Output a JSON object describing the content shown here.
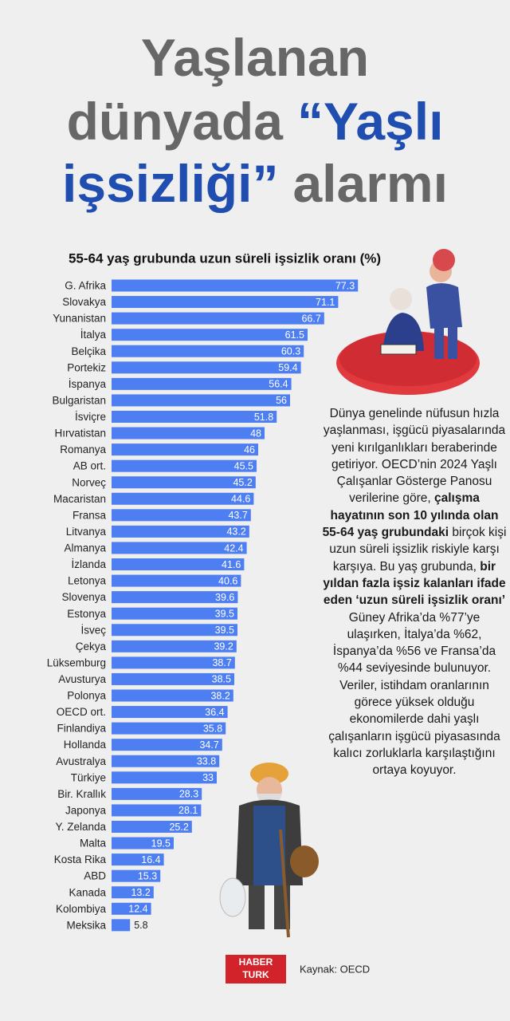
{
  "chart_data": {
    "type": "bar",
    "title": [
      [
        {
          "text": "Yaşlanan",
          "accent": false
        }
      ],
      [
        {
          "text": "dünyada",
          "accent": false
        },
        {
          "text": "“Yaşlı",
          "accent": true
        }
      ],
      [
        {
          "text": "işsizliği”",
          "accent": true
        },
        {
          "text": "alarmı",
          "accent": false
        }
      ]
    ],
    "subtitle": "55-64 yaş grubunda uzun süreli işsizlik oranı (%)",
    "categories": [
      "G. Afrika",
      "Slovakya",
      "Yunanistan",
      "İtalya",
      "Belçika",
      "Portekiz",
      "İspanya",
      "Bulgaristan",
      "İsviçre",
      "Hırvatistan",
      "Romanya",
      "AB ort.",
      "Norveç",
      "Macaristan",
      "Fransa",
      "Litvanya",
      "Almanya",
      "İzlanda",
      "Letonya",
      "Slovenya",
      "Estonya",
      "İsveç",
      "Çekya",
      "Lüksemburg",
      "Avusturya",
      "Polonya",
      "OECD ort.",
      "Finlandiya",
      "Hollanda",
      "Avustralya",
      "Türkiye",
      "Bir. Krallık",
      "Japonya",
      "Y. Zelanda",
      "Malta",
      "Kosta Rika",
      "ABD",
      "Kanada",
      "Kolombiya",
      "Meksika"
    ],
    "values": [
      77.3,
      71.1,
      66.7,
      61.5,
      60.3,
      59.4,
      56.4,
      56,
      51.8,
      48,
      46,
      45.5,
      45.2,
      44.6,
      43.7,
      43.2,
      42.4,
      41.6,
      40.6,
      39.6,
      39.5,
      39.5,
      39.2,
      38.7,
      38.5,
      38.2,
      36.4,
      35.8,
      34.7,
      33.8,
      33,
      28.3,
      28.1,
      25.2,
      19.5,
      16.4,
      15.3,
      13.2,
      12.4,
      5.8
    ],
    "color": "#4d7ef2",
    "paragraph": [
      {
        "text": "Dünya genelinde nüfusun hızla yaşlanması, işgücü piyasalarında yeni kırılganlıkları beraberinde getiriyor. OECD’nin 2024 Yaşlı Çalışanlar Gösterge Panosu verilerine göre, ",
        "bold": false
      },
      {
        "text": "çalışma hayatının son 10 yılında olan 55-64 yaş grubundaki",
        "bold": true
      },
      {
        "text": " birçok kişi uzun süreli işsizlik riskiyle karşı karşıya. Bu yaş grubunda, ",
        "bold": false
      },
      {
        "text": "bir yıldan fazla işsiz kalanları ifade eden ‘uzun süreli işsizlik oranı’",
        "bold": true
      },
      {
        "text": " Güney Afrika’da %77’ye ulaşırken, İtalya’da %62, İspanya’da %56 ve Fransa’da %44 seviyesinde bulunuyor. Veriler, istihdam oranlarının görece yüksek olduğu ekonomilerde dahi yaşlı çalışanların işgücü piyasasında kalıcı zorluklarla karşılaştığını ortaya koyuyor.",
        "bold": false
      }
    ],
    "logo": [
      "HABER",
      "TURK"
    ],
    "source": "Kaynak: OECD"
  }
}
